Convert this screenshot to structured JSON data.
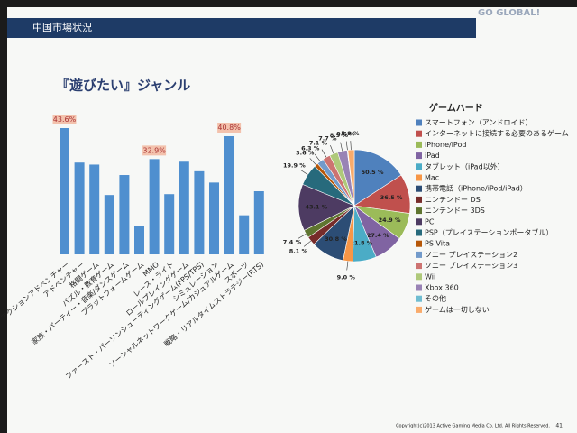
{
  "slide": {
    "header": "中国市場状況",
    "brand": "GO GLOBAL!",
    "title": "『遊びたい』ジャンル",
    "footer": "Copyright(c)2013 Active Gaming Media Co. Ltd. All Rights Reserved.",
    "page": "41"
  },
  "chart_data": [
    {
      "type": "bar",
      "color": "#4f8fcf",
      "categories": [
        "アクションアドベンチャー",
        "アドベンチャー",
        "格闘ゲーム",
        "パズル・教育ゲーム",
        "家族・パーティー・音楽/ダンスゲーム",
        "プラットフォームゲーム",
        "MMO",
        "レース・ライト",
        "ロールプレイングゲーム",
        "ファースト・パーソンシューティングゲーム(FPS/TPS)",
        "シミュレーション",
        "ソーシャルネットワークゲーム/カジュアルゲーム",
        "スポーツ",
        "戦略・リアルタイムストラテジー(RTS)"
      ],
      "values": [
        43.6,
        31.7,
        31.0,
        20.5,
        27.4,
        9.9,
        32.9,
        20.8,
        32.0,
        28.7,
        24.8,
        40.8,
        13.5,
        21.8
      ],
      "value_labels": [
        "43.6%",
        null,
        null,
        null,
        null,
        null,
        "32.9%",
        null,
        null,
        null,
        null,
        "40.8%",
        null,
        null
      ]
    },
    {
      "type": "pie",
      "title": "ゲームハード",
      "categories": [
        "スマートフォン（アンドロイド）",
        "インターネットに接続する必要のあるゲーム",
        "iPhone/iPod",
        "iPad",
        "タブレット（iPad以外）",
        "Mac",
        "携帯電話（iPhone/iPod/iPad）",
        "ニンテンドー DS",
        "ニンテンドー 3DS",
        "PC",
        "PSP（プレイステーションポータブル）",
        "PS Vita",
        "ソニー プレイステーション2",
        "ソニー プレイステーション3",
        "Wii",
        "Xbox 360",
        "その他",
        "ゲームは一切しない"
      ],
      "values": [
        50.5,
        36.5,
        24.9,
        27.4,
        21.8,
        9.0,
        30.8,
        8.1,
        7.4,
        43.1,
        19.9,
        3.6,
        6.3,
        7.1,
        7.7,
        8.9,
        0.6,
        5.9
      ],
      "value_labels": [
        "50.5 %",
        "36.5 %",
        "24.9 %",
        "27.4 %",
        "21.8 %",
        "9.0 %",
        "30.8 %",
        "8.1 %",
        "7.4 %",
        "43.1 %",
        "19.9 %",
        "3.6 %",
        "6.3 %",
        "7.1 %",
        "7.7 %",
        "8.9 %",
        "0.6 %",
        "5.9 %"
      ],
      "colors": [
        "#4f81bd",
        "#c0504d",
        "#9bbb59",
        "#8064a2",
        "#4bacc6",
        "#f79646",
        "#2c4d75",
        "#772c2a",
        "#5f7530",
        "#4d3b62",
        "#276a7c",
        "#b65708",
        "#729aca",
        "#cd7371",
        "#afc97a",
        "#9983b5",
        "#6fbdd1",
        "#f9ab6b"
      ]
    }
  ]
}
